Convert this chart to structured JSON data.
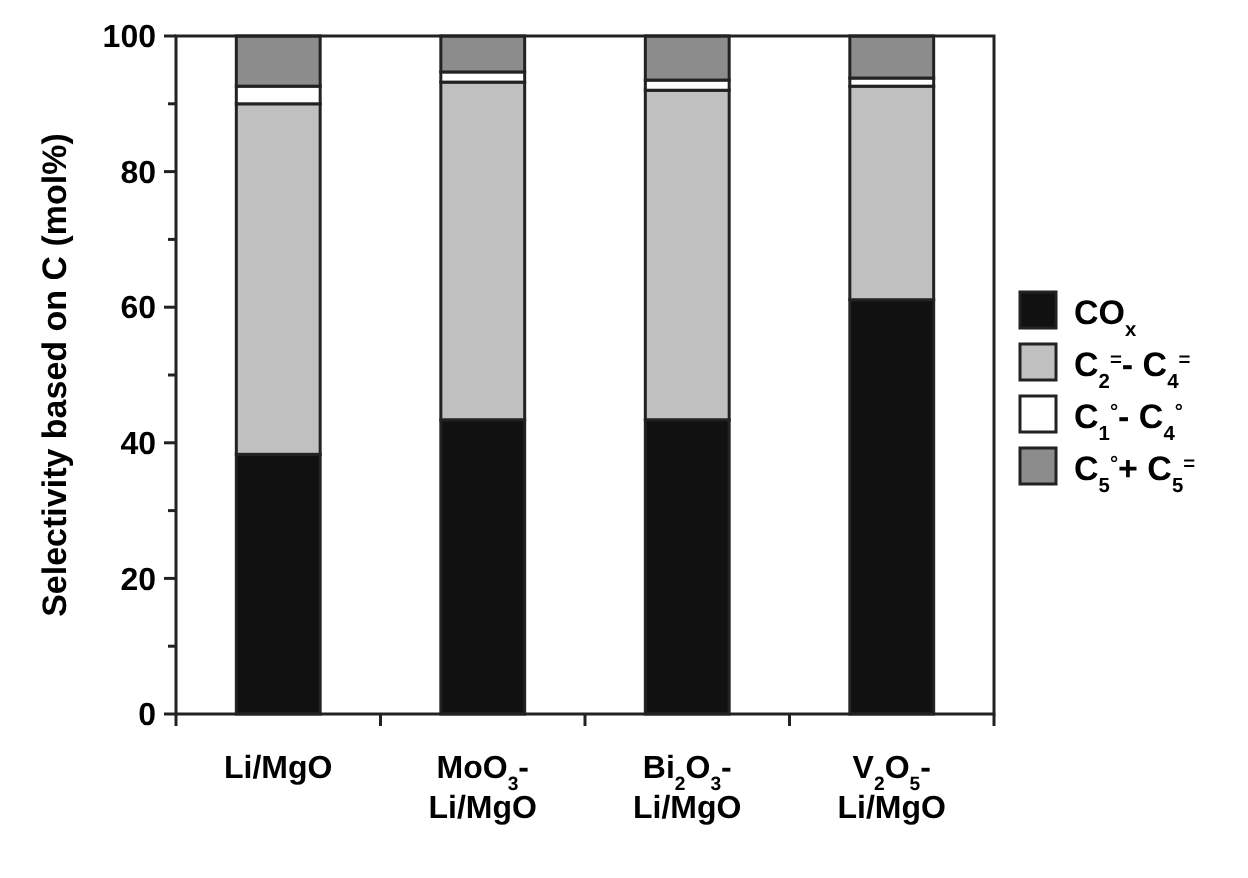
{
  "chart_data": {
    "type": "bar",
    "stacked": true,
    "ylabel": "Selectivity based on C (mol%)",
    "categories": [
      "Li/MgO",
      "MoO$_{3}$-\nLi/MgO",
      "Bi$_{2}$O$_{3}$-\nLi/MgO",
      "V$_{2}$O$_{5}$-\nLi/MgO"
    ],
    "series": [
      {
        "name": "CO$_{x}$",
        "color": "#111111",
        "values": [
          38.3,
          43.4,
          43.4,
          61.1
        ]
      },
      {
        "name": "C$_{2}$$^{=}$- C$_{4}$$^{=}$",
        "color": "#c0c0c0",
        "values": [
          51.7,
          49.8,
          48.6,
          31.5
        ]
      },
      {
        "name": "C$_{1}$$^{°}$- C$_{4}$$^{°}$",
        "color": "#ffffff",
        "values": [
          2.6,
          1.5,
          1.5,
          1.2
        ]
      },
      {
        "name": "C$_{5}$$^{°}$+ C$_{5}$$^{=}$",
        "color": "#8c8c8c",
        "values": [
          7.4,
          5.3,
          6.5,
          6.2
        ]
      }
    ],
    "ylim": [
      0,
      100
    ],
    "yticks": [
      0,
      {
        "value": 10,
        "label": null
      },
      20,
      {
        "value": 30,
        "label": null
      },
      40,
      {
        "value": 50,
        "label": null
      },
      60,
      {
        "value": 70,
        "label": null
      },
      80,
      {
        "value": 90,
        "label": null
      },
      100
    ],
    "grid": false,
    "legend": "right"
  }
}
